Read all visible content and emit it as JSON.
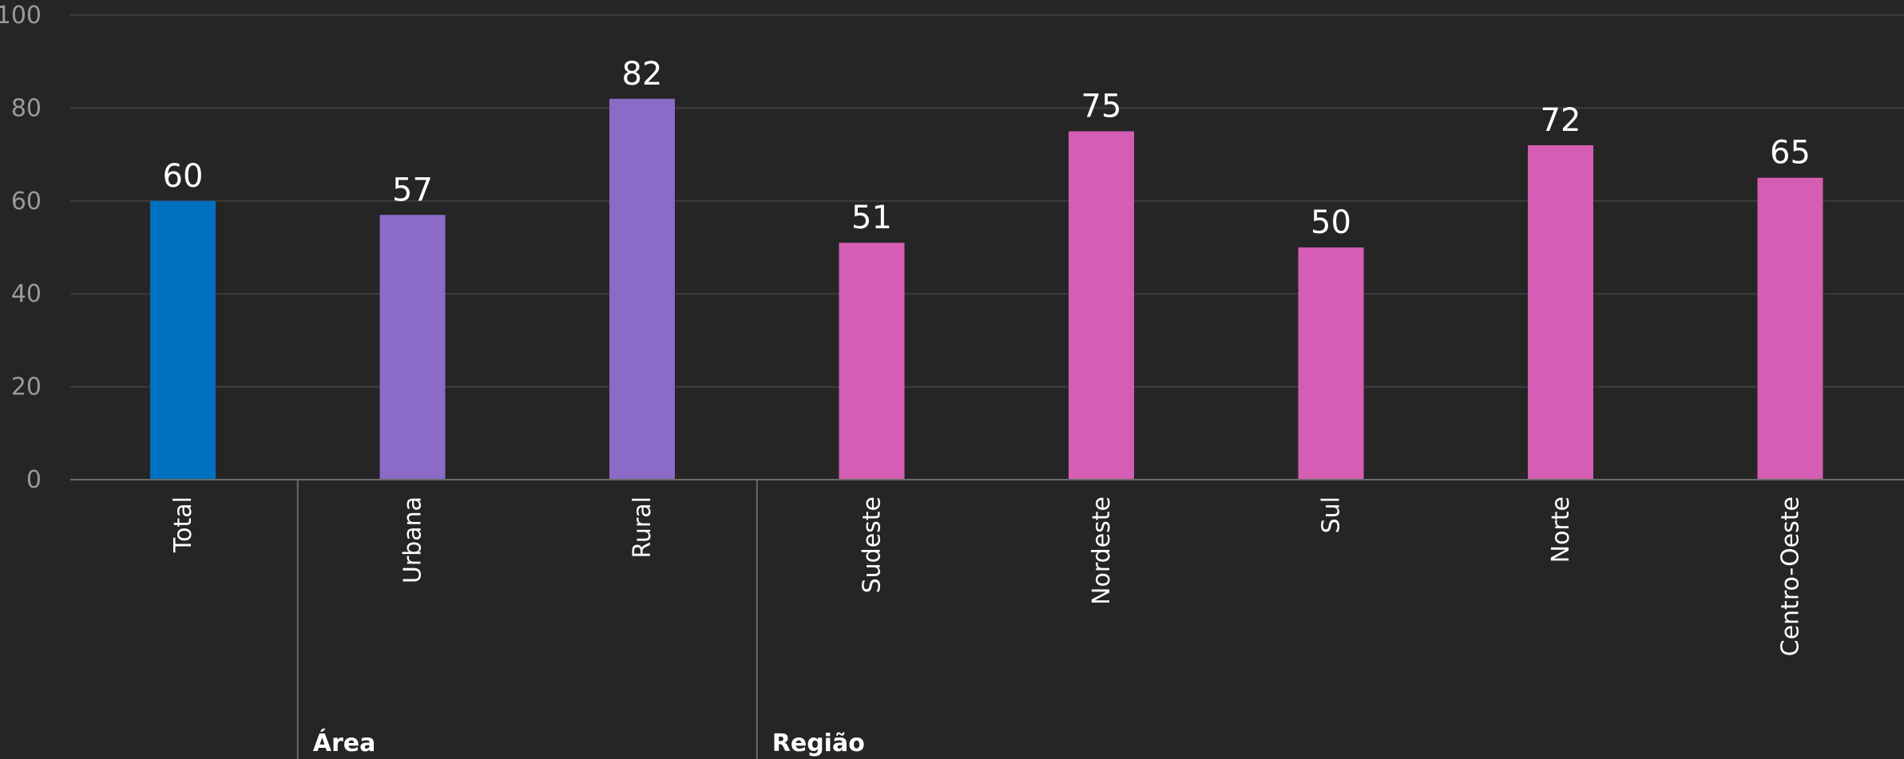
{
  "chart_data": {
    "type": "bar",
    "ylim": [
      0,
      100
    ],
    "yticks": [
      0,
      20,
      40,
      60,
      80,
      100
    ],
    "grid": true,
    "categories": [
      "Total",
      "Urbana",
      "Rural",
      "Sudeste",
      "Nordeste",
      "Sul",
      "Norte",
      "Centro-Oeste"
    ],
    "values": [
      60,
      57,
      82,
      51,
      75,
      50,
      72,
      65
    ],
    "bar_colors": [
      "#0070c0",
      "#8b6ac8",
      "#8b6ac8",
      "#d55db3",
      "#d55db3",
      "#d55db3",
      "#d55db3",
      "#d55db3"
    ],
    "groups": [
      {
        "label": "",
        "categories": [
          "Total"
        ]
      },
      {
        "label": "Área",
        "categories": [
          "Urbana",
          "Rural"
        ]
      },
      {
        "label": "Região",
        "categories": [
          "Sudeste",
          "Nordeste",
          "Sul",
          "Norte",
          "Centro-Oeste"
        ]
      }
    ]
  }
}
